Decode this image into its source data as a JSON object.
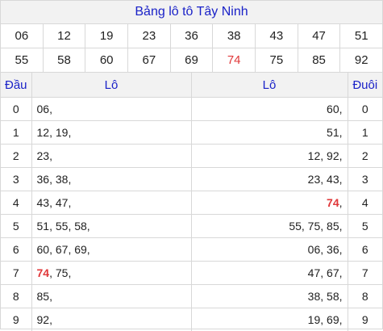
{
  "title": "Bảng lô tô Tây Ninh",
  "numbers_row1": [
    "06",
    "12",
    "19",
    "23",
    "36",
    "38",
    "43",
    "47",
    "51"
  ],
  "numbers_row2": [
    "55",
    "58",
    "60",
    "67",
    "69",
    "74",
    "75",
    "85",
    "92"
  ],
  "highlight_number": "74",
  "headers": {
    "dau": "Đầu",
    "lo_left": "Lô",
    "lo_right": "Lô",
    "duoi": "Đuôi"
  },
  "rows": [
    {
      "dau": "0",
      "left": [
        "06"
      ],
      "right": [
        "60"
      ],
      "duoi": "0"
    },
    {
      "dau": "1",
      "left": [
        "12",
        "19"
      ],
      "right": [
        "51"
      ],
      "duoi": "1"
    },
    {
      "dau": "2",
      "left": [
        "23"
      ],
      "right": [
        "12",
        "92"
      ],
      "duoi": "2"
    },
    {
      "dau": "3",
      "left": [
        "36",
        "38"
      ],
      "right": [
        "23",
        "43"
      ],
      "duoi": "3"
    },
    {
      "dau": "4",
      "left": [
        "43",
        "47"
      ],
      "right": [
        "74"
      ],
      "duoi": "4"
    },
    {
      "dau": "5",
      "left": [
        "51",
        "55",
        "58"
      ],
      "right": [
        "55",
        "75",
        "85"
      ],
      "duoi": "5"
    },
    {
      "dau": "6",
      "left": [
        "60",
        "67",
        "69"
      ],
      "right": [
        "06",
        "36"
      ],
      "duoi": "6"
    },
    {
      "dau": "7",
      "left": [
        "74",
        "75"
      ],
      "right": [
        "47",
        "67"
      ],
      "duoi": "7"
    },
    {
      "dau": "8",
      "left": [
        "85"
      ],
      "right": [
        "38",
        "58"
      ],
      "duoi": "8"
    },
    {
      "dau": "9",
      "left": [
        "92"
      ],
      "right": [
        "19",
        "69"
      ],
      "duoi": "9"
    }
  ],
  "colors": {
    "accent_blue": "#1a22c8",
    "highlight_red": "#e0383a",
    "header_bg": "#f2f2f2",
    "border": "#d8d8d8"
  }
}
